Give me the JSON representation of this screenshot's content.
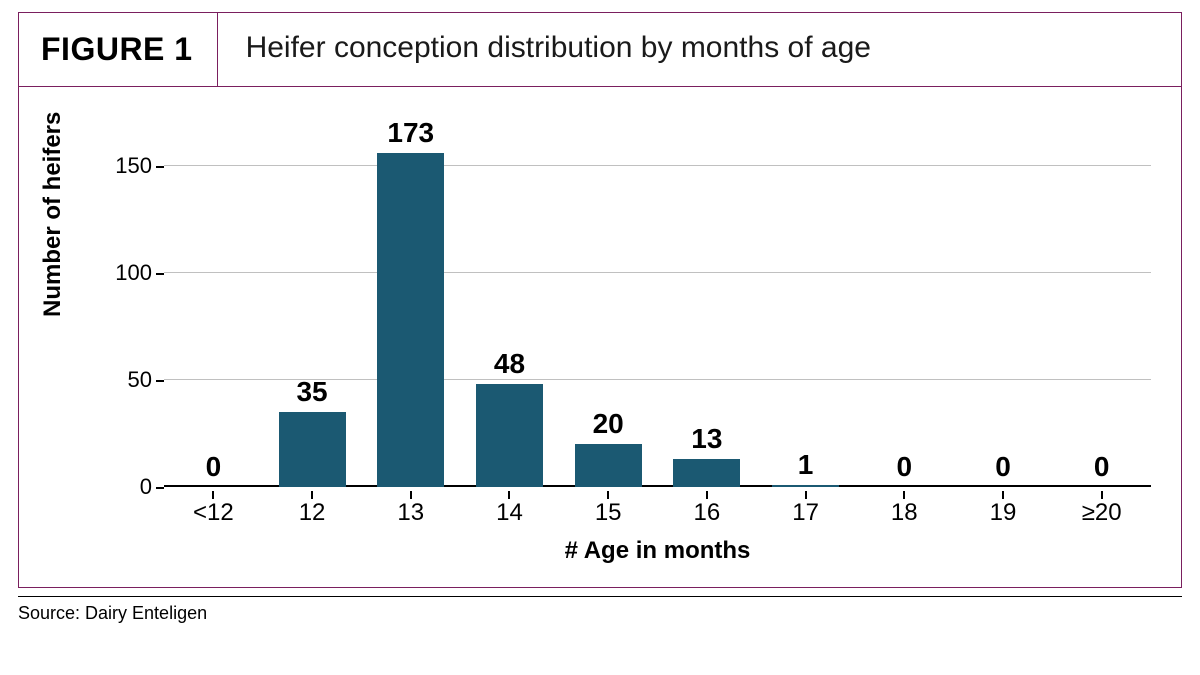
{
  "header": {
    "figure_label": "FIGURE 1",
    "title": "Heifer conception distribution by months of age"
  },
  "source": "Source: Dairy Enteligen",
  "chart": {
    "type": "bar",
    "ylabel": "Number of heifers",
    "xlabel": "# Age in months",
    "categories": [
      "<12",
      "12",
      "13",
      "14",
      "15",
      "16",
      "17",
      "18",
      "19",
      "≥20"
    ],
    "values": [
      0,
      35,
      173,
      48,
      20,
      13,
      1,
      0,
      0,
      0
    ],
    "ylim": [
      0,
      173
    ],
    "yticks": [
      0,
      50,
      100,
      150
    ],
    "bar_color": "#1b5972",
    "grid_color": "#c0c0c0",
    "background_color": "#ffffff",
    "border_color": "#7a1f5e",
    "value_label_fontsize": 28,
    "tick_fontsize": 22,
    "axis_label_fontsize": 24,
    "title_fontsize": 30,
    "figure_label_fontsize": 32,
    "bar_width": 0.68
  }
}
